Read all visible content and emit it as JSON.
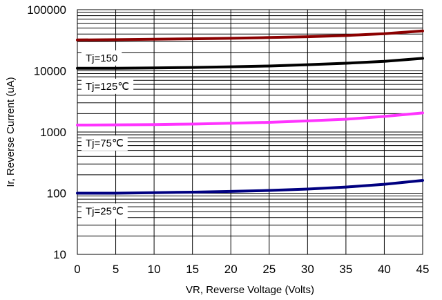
{
  "chart_data": {
    "type": "line",
    "title": "",
    "xlabel": "VR, Reverse Voltage (Volts)",
    "ylabel": "Ir, Reverse Current (uA)",
    "xlim": [
      0,
      45
    ],
    "ylim": [
      10,
      100000
    ],
    "yscale": "log",
    "grid": true,
    "x_ticks": [
      0,
      5,
      10,
      15,
      20,
      25,
      30,
      35,
      40,
      45
    ],
    "x_tick_labels": [
      "0",
      "5",
      "10",
      "15",
      "20",
      "25",
      "30",
      "35",
      "40",
      "45"
    ],
    "y_ticks": [
      10,
      100,
      1000,
      10000,
      100000
    ],
    "y_tick_labels": [
      "10",
      "100",
      "1000",
      "10000",
      "100000"
    ],
    "series": [
      {
        "name": "Tj=150",
        "color": "#8b0000",
        "x": [
          0,
          5,
          10,
          15,
          20,
          25,
          30,
          35,
          40,
          45
        ],
        "y": [
          32000,
          32300,
          32800,
          33400,
          34100,
          35000,
          36200,
          37800,
          40500,
          45000
        ]
      },
      {
        "name": "Tj=125℃",
        "color": "#000000",
        "x": [
          0,
          5,
          10,
          15,
          20,
          25,
          30,
          35,
          40,
          45
        ],
        "y": [
          11000,
          11050,
          11150,
          11350,
          11650,
          12000,
          12600,
          13300,
          14300,
          16000
        ]
      },
      {
        "name": "Tj=75℃",
        "color": "#ff33ff",
        "x": [
          0,
          5,
          10,
          15,
          20,
          25,
          30,
          35,
          40,
          45
        ],
        "y": [
          1300,
          1310,
          1325,
          1350,
          1390,
          1440,
          1520,
          1620,
          1800,
          2050
        ]
      },
      {
        "name": "Tj=25℃",
        "color": "#000080",
        "x": [
          0,
          5,
          10,
          15,
          20,
          25,
          30,
          35,
          40,
          45
        ],
        "y": [
          100,
          100,
          102,
          104,
          107,
          111,
          117,
          126,
          140,
          162
        ]
      }
    ]
  }
}
